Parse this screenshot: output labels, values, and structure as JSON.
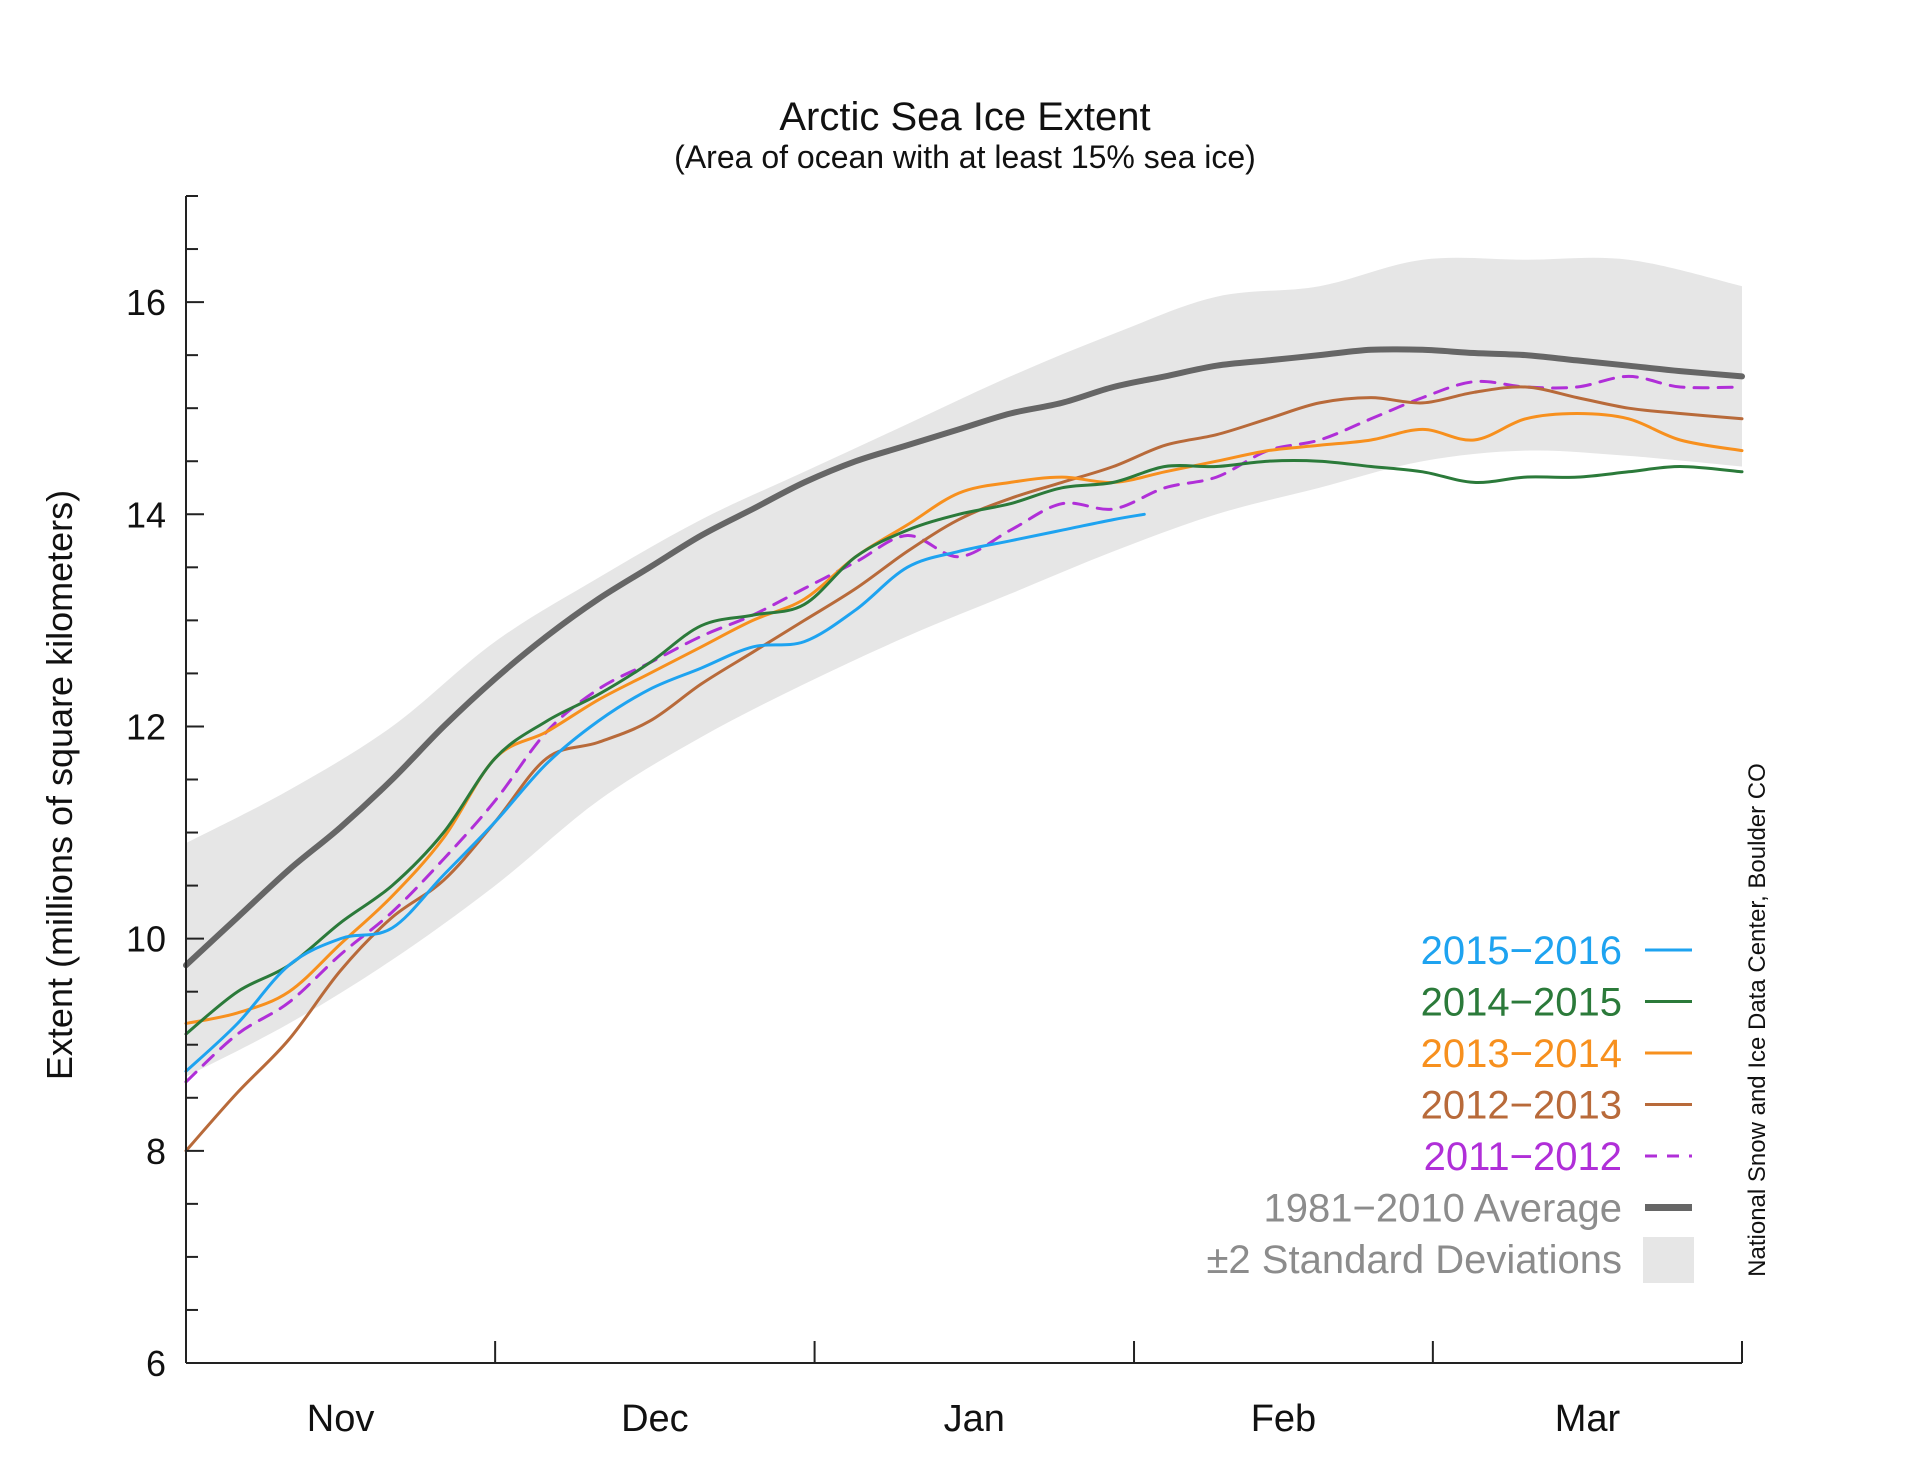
{
  "chart_data": {
    "type": "line",
    "title": "Arctic Sea Ice Extent",
    "subtitle": "(Area of ocean with at least 15% sea ice)",
    "xlabel": "",
    "ylabel": "Extent (millions of square kilometers)",
    "source": "National Snow and Ice Data Center, Boulder CO",
    "x_unit": "day of season (0 = Oct 31)",
    "xlim": [
      0,
      151
    ],
    "ylim": [
      6,
      17
    ],
    "y_ticks": [
      6,
      8,
      10,
      12,
      14,
      16
    ],
    "y_tick_labels": [
      "6",
      "8",
      "10",
      "12",
      "14",
      "16"
    ],
    "y_minor_step": 0.5,
    "x_major_ticks": [
      30,
      61,
      92,
      121
    ],
    "x_labels": [
      {
        "text": "Nov",
        "x": 15
      },
      {
        "text": "Dec",
        "x": 45.5
      },
      {
        "text": "Jan",
        "x": 76.5
      },
      {
        "text": "Feb",
        "x": 106.5
      },
      {
        "text": "Mar",
        "x": 136
      }
    ],
    "band": {
      "name": "±2 Standard Deviations",
      "color": "#e6e6e6",
      "x": [
        0,
        10,
        20,
        30,
        40,
        50,
        60,
        70,
        80,
        90,
        100,
        110,
        120,
        130,
        140,
        151
      ],
      "upper": [
        10.9,
        11.4,
        12.0,
        12.8,
        13.4,
        13.95,
        14.4,
        14.85,
        15.3,
        15.7,
        16.05,
        16.15,
        16.4,
        16.4,
        16.4,
        16.15
      ],
      "lower": [
        8.7,
        9.2,
        9.8,
        10.5,
        11.3,
        11.9,
        12.4,
        12.85,
        13.25,
        13.65,
        14.0,
        14.25,
        14.5,
        14.6,
        14.55,
        14.45
      ]
    },
    "series": [
      {
        "name": "1981−2010 Average",
        "color": "#666666",
        "width": 6,
        "dashed": false,
        "x": [
          0,
          5,
          10,
          15,
          20,
          25,
          30,
          35,
          40,
          45,
          50,
          55,
          60,
          65,
          70,
          75,
          80,
          85,
          90,
          95,
          100,
          105,
          110,
          115,
          120,
          125,
          130,
          135,
          140,
          145,
          151
        ],
        "values": [
          9.75,
          10.2,
          10.65,
          11.05,
          11.5,
          12.0,
          12.45,
          12.85,
          13.2,
          13.5,
          13.8,
          14.05,
          14.3,
          14.5,
          14.65,
          14.8,
          14.95,
          15.05,
          15.2,
          15.3,
          15.4,
          15.45,
          15.5,
          15.55,
          15.55,
          15.52,
          15.5,
          15.45,
          15.4,
          15.35,
          15.3
        ]
      },
      {
        "name": "2011−2012",
        "color": "#b02fd8",
        "width": 3,
        "dashed": true,
        "x": [
          0,
          5,
          10,
          15,
          20,
          25,
          30,
          35,
          40,
          45,
          50,
          55,
          60,
          65,
          70,
          75,
          80,
          85,
          90,
          95,
          100,
          105,
          110,
          115,
          120,
          125,
          130,
          135,
          140,
          145,
          151
        ],
        "values": [
          8.65,
          9.1,
          9.4,
          9.85,
          10.25,
          10.75,
          11.3,
          11.95,
          12.35,
          12.6,
          12.85,
          13.05,
          13.3,
          13.55,
          13.8,
          13.6,
          13.85,
          14.1,
          14.05,
          14.25,
          14.35,
          14.6,
          14.7,
          14.9,
          15.1,
          15.25,
          15.2,
          15.2,
          15.3,
          15.2,
          15.2
        ]
      },
      {
        "name": "2012−2013",
        "color": "#b86a3a",
        "width": 3,
        "dashed": false,
        "x": [
          0,
          5,
          10,
          15,
          20,
          25,
          30,
          35,
          40,
          45,
          50,
          55,
          60,
          65,
          70,
          75,
          80,
          85,
          90,
          95,
          100,
          105,
          110,
          115,
          120,
          125,
          130,
          135,
          140,
          145,
          151
        ],
        "values": [
          8.0,
          8.55,
          9.05,
          9.7,
          10.2,
          10.55,
          11.1,
          11.7,
          11.85,
          12.05,
          12.4,
          12.7,
          13.0,
          13.3,
          13.65,
          13.95,
          14.15,
          14.3,
          14.45,
          14.65,
          14.75,
          14.9,
          15.05,
          15.1,
          15.05,
          15.15,
          15.2,
          15.1,
          15.0,
          14.95,
          14.9
        ]
      },
      {
        "name": "2013−2014",
        "color": "#f7901e",
        "width": 3,
        "dashed": false,
        "x": [
          0,
          5,
          10,
          15,
          20,
          25,
          30,
          35,
          40,
          45,
          50,
          55,
          60,
          65,
          70,
          75,
          80,
          85,
          90,
          95,
          100,
          105,
          110,
          115,
          120,
          125,
          130,
          135,
          140,
          145,
          151
        ],
        "values": [
          9.2,
          9.3,
          9.5,
          9.95,
          10.4,
          10.95,
          11.7,
          11.95,
          12.25,
          12.5,
          12.75,
          13.0,
          13.2,
          13.6,
          13.9,
          14.2,
          14.3,
          14.35,
          14.3,
          14.4,
          14.5,
          14.6,
          14.65,
          14.7,
          14.8,
          14.7,
          14.9,
          14.95,
          14.9,
          14.7,
          14.6
        ]
      },
      {
        "name": "2014−2015",
        "color": "#2b7a3a",
        "width": 3,
        "dashed": false,
        "x": [
          0,
          5,
          10,
          15,
          20,
          25,
          30,
          35,
          40,
          45,
          50,
          55,
          60,
          65,
          70,
          75,
          80,
          85,
          90,
          95,
          100,
          105,
          110,
          115,
          120,
          125,
          130,
          135,
          140,
          145,
          151
        ],
        "values": [
          9.1,
          9.5,
          9.75,
          10.15,
          10.5,
          11.0,
          11.7,
          12.05,
          12.3,
          12.6,
          12.95,
          13.05,
          13.15,
          13.6,
          13.85,
          14.0,
          14.1,
          14.25,
          14.3,
          14.45,
          14.45,
          14.5,
          14.5,
          14.45,
          14.4,
          14.3,
          14.35,
          14.35,
          14.4,
          14.45,
          14.4
        ]
      },
      {
        "name": "2015−2016",
        "color": "#1ea3f0",
        "width": 3,
        "dashed": false,
        "x": [
          0,
          5,
          10,
          15,
          20,
          25,
          30,
          35,
          40,
          45,
          50,
          55,
          60,
          65,
          70,
          75,
          80,
          85,
          90,
          93
        ],
        "values": [
          8.75,
          9.2,
          9.75,
          10.0,
          10.1,
          10.6,
          11.1,
          11.65,
          12.05,
          12.35,
          12.55,
          12.75,
          12.8,
          13.1,
          13.5,
          13.65,
          13.75,
          13.85,
          13.95,
          14.0
        ]
      }
    ],
    "legend": {
      "placement": "bottom-right",
      "items": [
        {
          "label": "2015−2016",
          "color": "#1ea3f0",
          "swatch": "line"
        },
        {
          "label": "2014−2015",
          "color": "#2b7a3a",
          "swatch": "line"
        },
        {
          "label": "2013−2014",
          "color": "#f7901e",
          "swatch": "line"
        },
        {
          "label": "2012−2013",
          "color": "#b86a3a",
          "swatch": "line"
        },
        {
          "label": "2011−2012",
          "color": "#b02fd8",
          "swatch": "dashed"
        },
        {
          "label": "1981−2010 Average",
          "color": "#666666",
          "swatch": "thick"
        },
        {
          "label": "±2 Standard Deviations",
          "color": "#e6e6e6",
          "swatch": "box"
        }
      ]
    }
  }
}
